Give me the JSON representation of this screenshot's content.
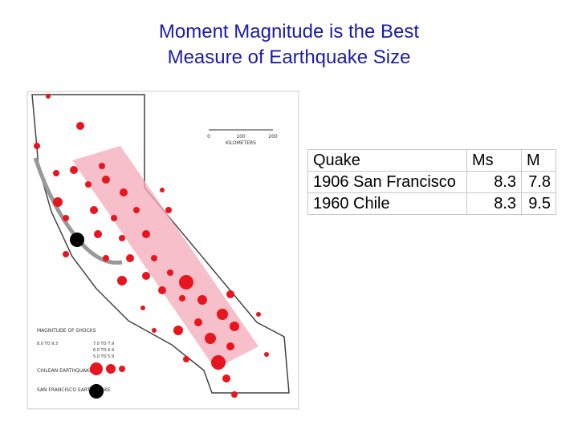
{
  "header": {
    "title_lines": [
      "Moment Magnitude is the Best",
      "Measure of Earthquake Size"
    ]
  },
  "map": {
    "scale_ticks": [
      "0",
      "100",
      "200"
    ],
    "scale_unit": "KILOMETERS",
    "legend_title": "MAGNITUDE OF SHOCKS",
    "legend_ranges": [
      "7.0 TO 7.9",
      "6.0 TO 6.9",
      "5.0 TO 5.9"
    ],
    "legend_top_range": "8.0 TO 9.3",
    "chilean_label": "CHILEAN EARTHQUAKE",
    "sf_label": "SAN FRANCISCO EARTHQUAKE"
  },
  "table": {
    "header": [
      "Quake",
      "Ms",
      "M"
    ],
    "rows": [
      [
        "1906 San Francisco",
        8.3,
        7.8
      ],
      [
        "1960 Chile",
        8.3,
        9.5
      ]
    ]
  }
}
